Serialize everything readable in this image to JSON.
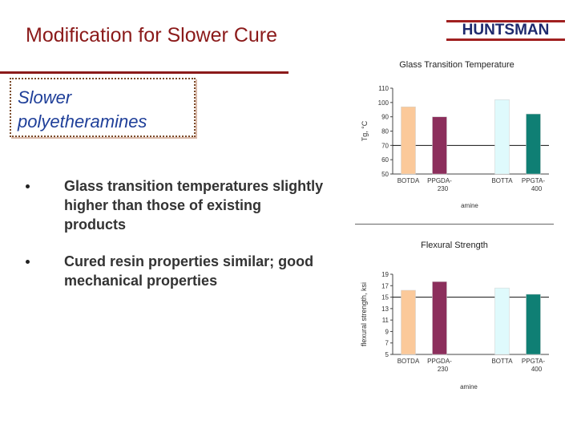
{
  "slide": {
    "title": "Modification for Slower Cure",
    "logo_text": "HUNTSMAN",
    "callout": "Slower polyetheramines",
    "bullets": [
      "Glass transition temperatures slightly higher than those of existing products",
      "Cured resin properties similar; good mechanical properties"
    ]
  },
  "colors": {
    "title": "#8b1a1a",
    "callout_text": "#1f3f99",
    "bar_peach": "#fbc99a",
    "bar_maroon": "#8c2f5c",
    "bar_light_cyan": "#dffafc",
    "bar_teal": "#0f7f74"
  },
  "chart_data": [
    {
      "type": "bar",
      "title": "Glass Transition Temperature",
      "xlabel": "amine",
      "ylabel": "Tg, °C",
      "ylim": [
        50,
        110
      ],
      "yticks": [
        50,
        60,
        70,
        80,
        90,
        100,
        110
      ],
      "grid": false,
      "reference_line": 70,
      "categories": [
        {
          "line1": "BOTDA",
          "line2": ""
        },
        {
          "line1": "PPGDA-",
          "line2": "230"
        },
        {
          "line1": "",
          "line2": ""
        },
        {
          "line1": "BOTTA",
          "line2": ""
        },
        {
          "line1": "PPGTA-",
          "line2": "400"
        }
      ],
      "values": [
        97,
        90,
        null,
        102,
        92
      ],
      "bar_colors": [
        "#fbc99a",
        "#8c2f5c",
        null,
        "#dffafc",
        "#0f7f74"
      ]
    },
    {
      "type": "bar",
      "title": "Flexural Strength",
      "xlabel": "amine",
      "ylabel": "flexural strength, ksi",
      "ylim": [
        5,
        19
      ],
      "yticks": [
        5,
        7,
        9,
        11,
        13,
        15,
        17,
        19
      ],
      "grid": false,
      "reference_line": 15,
      "categories": [
        {
          "line1": "BOTDA",
          "line2": ""
        },
        {
          "line1": "PPGDA-",
          "line2": "230"
        },
        {
          "line1": "",
          "line2": ""
        },
        {
          "line1": "BOTTA",
          "line2": ""
        },
        {
          "line1": "PPGTA-",
          "line2": "400"
        }
      ],
      "values": [
        16.2,
        17.7,
        null,
        16.6,
        15.5
      ],
      "bar_colors": [
        "#fbc99a",
        "#8c2f5c",
        null,
        "#dffafc",
        "#0f7f74"
      ]
    }
  ]
}
